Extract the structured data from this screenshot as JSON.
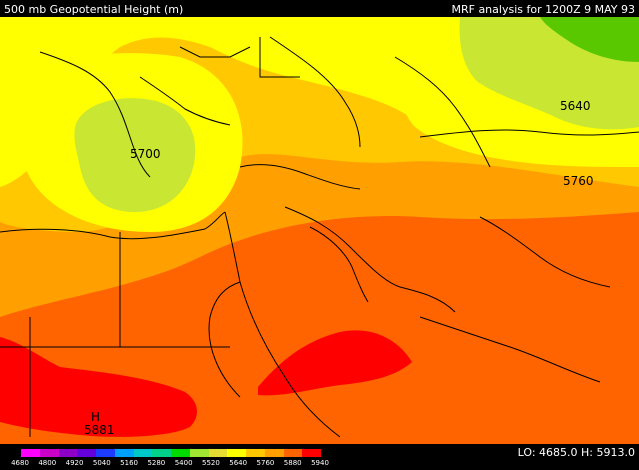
{
  "header": {
    "title": "500 mb Geopotential Height (m)",
    "analysis": "MRF analysis for 1200Z  9 MAY 93"
  },
  "footer": {
    "lo_hi": "LO: 4685.0  H: 5913.0"
  },
  "scale": {
    "colors": [
      "#ff00ff",
      "#c800c8",
      "#8c00c8",
      "#6400dc",
      "#1e3cff",
      "#00a0ff",
      "#00c8c8",
      "#00d28c",
      "#00dc00",
      "#a0e632",
      "#e6dc32",
      "#ffff00",
      "#ffc800",
      "#ffa000",
      "#ff6400",
      "#ff0000"
    ],
    "labels": [
      "4680",
      "4800",
      "4920",
      "5040",
      "5160",
      "5280",
      "5400",
      "5520",
      "5640",
      "5760",
      "5880",
      "5940"
    ]
  },
  "map": {
    "contour_labels": [
      {
        "text": "5640",
        "name": "contour-label-5640-east"
      },
      {
        "text": "5700",
        "name": "contour-label-5700-greece"
      },
      {
        "text": "5760",
        "name": "contour-label-5760-east"
      },
      {
        "text": "5881",
        "name": "contour-label-5881-africa"
      },
      {
        "text": "H",
        "name": "high-pressure-marker"
      }
    ],
    "colors": {
      "light_green": "#c8e632",
      "green": "#a0dc32",
      "dark_green": "#5ac800",
      "yellow": "#ffff00",
      "orange_light": "#ffc800",
      "orange": "#ffa000",
      "orange_dark": "#ff6400",
      "red": "#ff0000"
    }
  }
}
